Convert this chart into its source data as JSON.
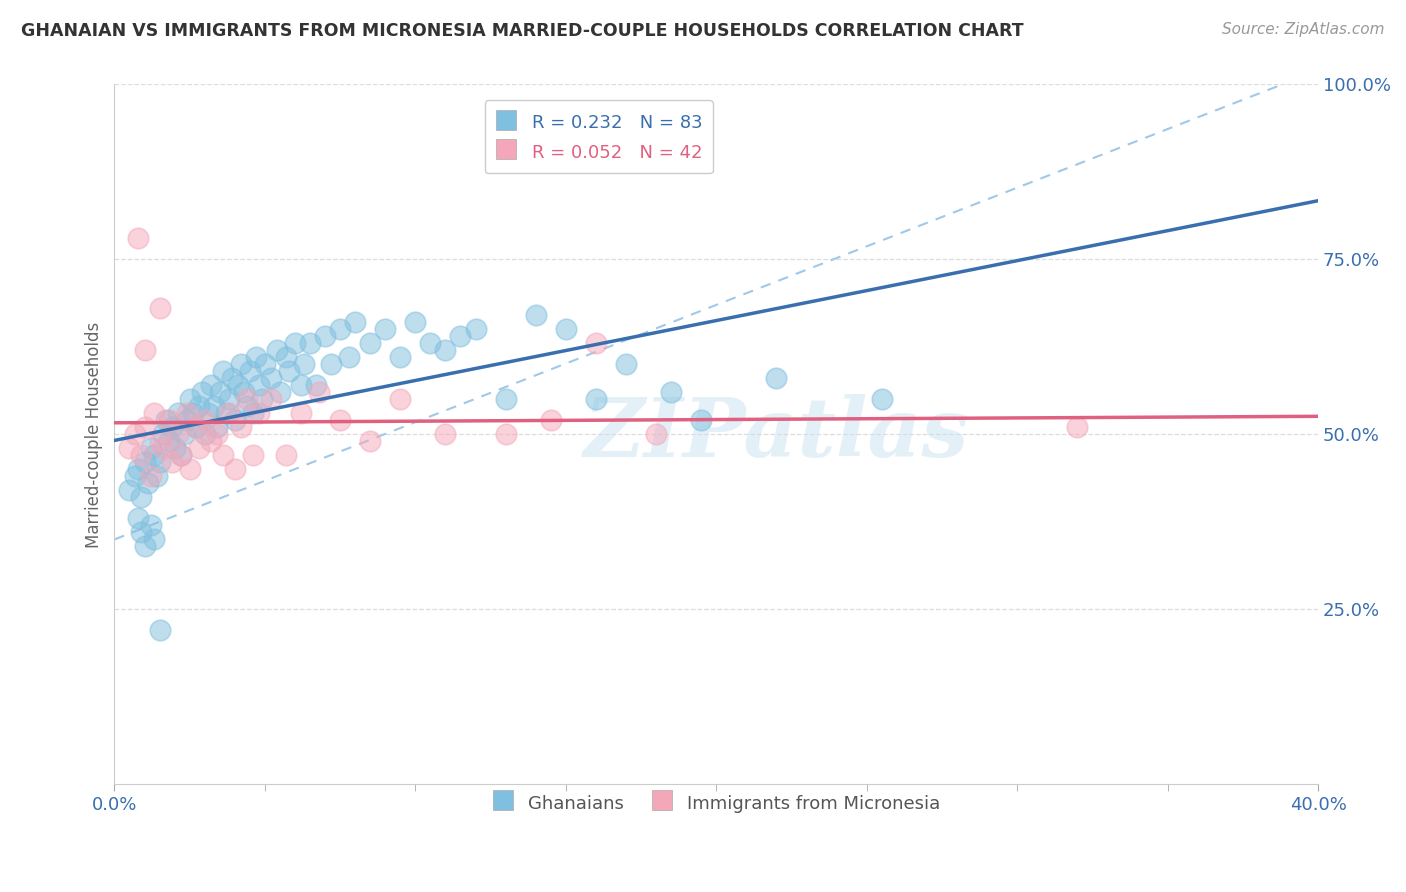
{
  "title": "GHANAIAN VS IMMIGRANTS FROM MICRONESIA MARRIED-COUPLE HOUSEHOLDS CORRELATION CHART",
  "source_text": "Source: ZipAtlas.com",
  "ylabel": "Married-couple Households",
  "xlim": [
    0.0,
    0.4
  ],
  "ylim": [
    0.0,
    1.0
  ],
  "ytick_values": [
    0.25,
    0.5,
    0.75,
    1.0
  ],
  "ytick_labels": [
    "25.0%",
    "50.0%",
    "75.0%",
    "100.0%"
  ],
  "xtick_major": [
    0.0,
    0.4
  ],
  "xtick_major_labels": [
    "0.0%",
    "40.0%"
  ],
  "xtick_minor": [
    0.05,
    0.1,
    0.15,
    0.2,
    0.25,
    0.3,
    0.35
  ],
  "legend_line1": "R = 0.232   N = 83",
  "legend_line2": "R = 0.052   N = 42",
  "legend_label1": "Ghanaians",
  "legend_label2": "Immigrants from Micronesia",
  "color_blue_dot": "#7fbfdf",
  "color_pink_dot": "#f4a7b9",
  "color_blue_trend": "#3a6faf",
  "color_pink_trend": "#e06080",
  "color_dashed": "#a0c8e8",
  "color_blue_text": "#3a6faf",
  "color_pink_text": "#e06080",
  "color_title": "#333333",
  "color_source": "#999999",
  "color_ylabel": "#666666",
  "color_grid": "#dddddd",
  "watermark": "ZIPatlas",
  "blue_x": [
    0.005,
    0.007,
    0.008,
    0.009,
    0.01,
    0.011,
    0.012,
    0.013,
    0.014,
    0.015,
    0.016,
    0.017,
    0.018,
    0.019,
    0.02,
    0.021,
    0.022,
    0.023,
    0.024,
    0.025,
    0.026,
    0.027,
    0.028,
    0.029,
    0.03,
    0.031,
    0.032,
    0.033,
    0.034,
    0.035,
    0.036,
    0.037,
    0.038,
    0.039,
    0.04,
    0.041,
    0.042,
    0.043,
    0.044,
    0.045,
    0.046,
    0.047,
    0.048,
    0.049,
    0.05,
    0.052,
    0.054,
    0.055,
    0.057,
    0.058,
    0.06,
    0.062,
    0.063,
    0.065,
    0.067,
    0.07,
    0.072,
    0.075,
    0.078,
    0.08,
    0.085,
    0.09,
    0.095,
    0.1,
    0.105,
    0.11,
    0.115,
    0.12,
    0.13,
    0.14,
    0.15,
    0.16,
    0.17,
    0.185,
    0.195,
    0.22,
    0.255,
    0.008,
    0.009,
    0.01,
    0.012,
    0.013,
    0.015
  ],
  "blue_y": [
    0.42,
    0.44,
    0.45,
    0.41,
    0.46,
    0.43,
    0.48,
    0.47,
    0.44,
    0.46,
    0.5,
    0.52,
    0.49,
    0.51,
    0.48,
    0.53,
    0.47,
    0.5,
    0.52,
    0.55,
    0.53,
    0.51,
    0.54,
    0.56,
    0.5,
    0.53,
    0.57,
    0.54,
    0.51,
    0.56,
    0.59,
    0.53,
    0.55,
    0.58,
    0.52,
    0.57,
    0.6,
    0.56,
    0.54,
    0.59,
    0.53,
    0.61,
    0.57,
    0.55,
    0.6,
    0.58,
    0.62,
    0.56,
    0.61,
    0.59,
    0.63,
    0.57,
    0.6,
    0.63,
    0.57,
    0.64,
    0.6,
    0.65,
    0.61,
    0.66,
    0.63,
    0.65,
    0.61,
    0.66,
    0.63,
    0.62,
    0.64,
    0.65,
    0.55,
    0.67,
    0.65,
    0.55,
    0.6,
    0.56,
    0.52,
    0.58,
    0.55,
    0.38,
    0.36,
    0.34,
    0.37,
    0.35,
    0.22
  ],
  "pink_x": [
    0.005,
    0.007,
    0.009,
    0.01,
    0.012,
    0.013,
    0.015,
    0.016,
    0.018,
    0.019,
    0.021,
    0.022,
    0.024,
    0.025,
    0.027,
    0.028,
    0.03,
    0.032,
    0.034,
    0.036,
    0.038,
    0.04,
    0.042,
    0.044,
    0.046,
    0.048,
    0.052,
    0.057,
    0.062,
    0.068,
    0.075,
    0.085,
    0.095,
    0.11,
    0.13,
    0.145,
    0.16,
    0.18,
    0.015,
    0.01,
    0.32,
    0.008
  ],
  "pink_y": [
    0.48,
    0.5,
    0.47,
    0.51,
    0.44,
    0.53,
    0.49,
    0.48,
    0.52,
    0.46,
    0.5,
    0.47,
    0.53,
    0.45,
    0.51,
    0.48,
    0.52,
    0.49,
    0.5,
    0.47,
    0.53,
    0.45,
    0.51,
    0.55,
    0.47,
    0.53,
    0.55,
    0.47,
    0.53,
    0.56,
    0.52,
    0.49,
    0.55,
    0.5,
    0.5,
    0.52,
    0.63,
    0.5,
    0.68,
    0.62,
    0.51,
    0.78
  ]
}
